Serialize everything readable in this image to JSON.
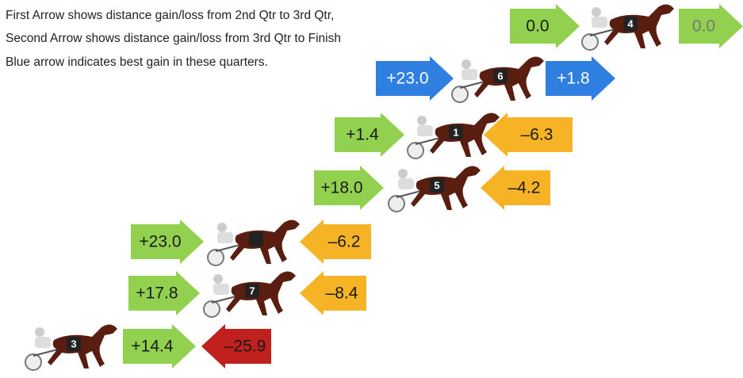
{
  "notes": [
    "First Arrow shows distance gain/loss from 2nd Qtr to 3rd Qtr,",
    "Second Arrow shows distance gain/loss from 3rd Qtr to Finish",
    "Blue arrow indicates best gain in these quarters."
  ],
  "rows": [
    {
      "horse": "4",
      "first": {
        "text": "0.0",
        "color": "#92d050"
      },
      "second": {
        "text": "0.0",
        "color": "#92d050"
      }
    },
    {
      "horse": "6",
      "first": {
        "text": "+23.0",
        "color": "#2f7fe0"
      },
      "second": {
        "text": "+1.8",
        "color": "#2f7fe0"
      }
    },
    {
      "horse": "1",
      "first": {
        "text": "+1.4",
        "color": "#92d050"
      },
      "second": {
        "text": "–6.3",
        "color": "#f5b325"
      }
    },
    {
      "horse": "5",
      "first": {
        "text": "+18.0",
        "color": "#92d050"
      },
      "second": {
        "text": "–4.2",
        "color": "#f5b325"
      }
    },
    {
      "first": {
        "text": "+23.0",
        "color": "#92d050"
      },
      "second": {
        "text": "–6.2",
        "color": "#f5b325"
      }
    },
    {
      "horse": "7",
      "first": {
        "text": "+17.8",
        "color": "#92d050"
      },
      "second": {
        "text": "–8.4",
        "color": "#f5b325"
      }
    },
    {
      "horse": "3",
      "first": {
        "text": "+14.4",
        "color": "#92d050"
      },
      "second": {
        "text": "–25.9",
        "color": "#c0201e"
      }
    }
  ]
}
